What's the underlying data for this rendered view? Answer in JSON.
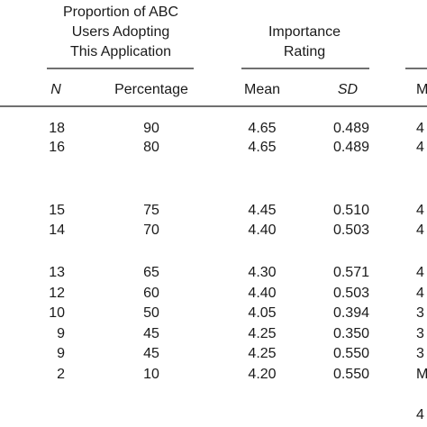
{
  "table": {
    "groups": [
      {
        "lines": [
          "Proportion of ABC",
          "Users Adopting",
          "This Application"
        ]
      },
      {
        "lines": [
          "Importance",
          "Rating"
        ]
      }
    ],
    "columns": [
      "N",
      "Percentage",
      "Mean",
      "SD",
      "M"
    ],
    "rows": [
      [
        18,
        90,
        "4.65",
        "0.489",
        "4"
      ],
      [
        16,
        80,
        "4.65",
        "0.489",
        "4"
      ],
      [
        15,
        75,
        "4.45",
        "0.510",
        "4"
      ],
      [
        14,
        70,
        "4.40",
        "0.503",
        "4"
      ],
      [
        13,
        65,
        "4.30",
        "0.571",
        "4"
      ],
      [
        12,
        60,
        "4.40",
        "0.503",
        "4"
      ],
      [
        10,
        50,
        "4.05",
        "0.394",
        "3"
      ],
      [
        9,
        45,
        "4.25",
        "0.350",
        "3"
      ],
      [
        9,
        45,
        "4.25",
        "0.550",
        "3"
      ],
      [
        2,
        10,
        "4.20",
        "0.550",
        "M"
      ],
      [
        null,
        null,
        null,
        null,
        "4"
      ]
    ]
  }
}
